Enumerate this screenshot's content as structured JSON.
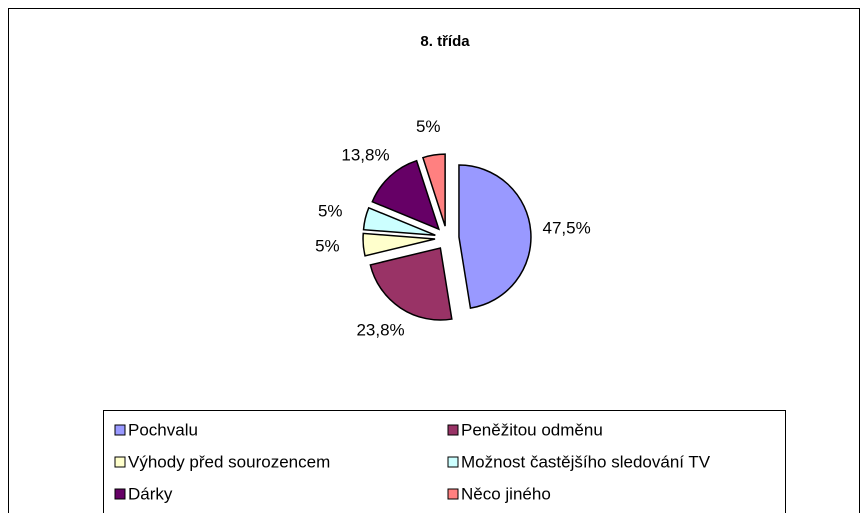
{
  "chart_data": {
    "type": "pie",
    "title": "8. třída",
    "categories": [
      "Pochvalu",
      "Peněžitou odměnu",
      "Výhody před sourozencem",
      "Možnost častějšího sledování TV",
      "Dárky",
      "Něco jiného"
    ],
    "values": [
      47.5,
      23.8,
      5,
      5,
      13.8,
      5
    ],
    "value_labels": [
      "47,5%",
      "23,8%",
      "5%",
      "5%",
      "13,8%",
      "5%"
    ],
    "colors": [
      "#9999ff",
      "#993366",
      "#ffffcc",
      "#ccffff",
      "#660066",
      "#ff8080"
    ],
    "legend": "bottom"
  }
}
